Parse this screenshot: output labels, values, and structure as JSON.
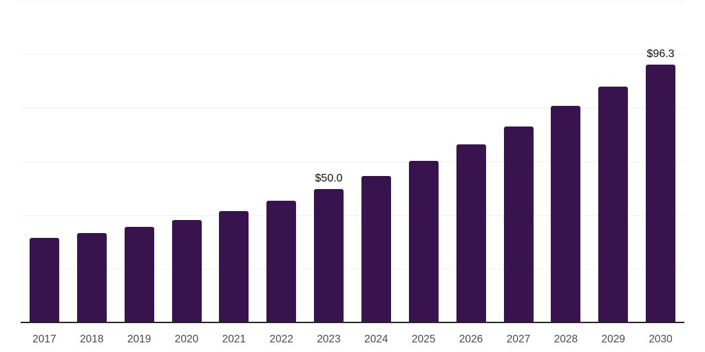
{
  "chart_data": {
    "type": "bar",
    "title": "",
    "categories": [
      "2017",
      "2018",
      "2019",
      "2020",
      "2021",
      "2022",
      "2023",
      "2024",
      "2025",
      "2026",
      "2027",
      "2028",
      "2029",
      "2030"
    ],
    "values": [
      31.8,
      33.7,
      35.8,
      38.4,
      41.8,
      45.6,
      50.0,
      55.0,
      60.6,
      66.7,
      73.4,
      81.0,
      88.3,
      96.3
    ],
    "data_labels": [
      {
        "category": "2023",
        "text": "$50.0"
      },
      {
        "category": "2030",
        "text": "$96.3"
      }
    ],
    "xlabel": "",
    "ylabel": "",
    "ylim": [
      0,
      120
    ],
    "grid": true,
    "grid_step": 20,
    "legend": false,
    "bar_color": "#38134e",
    "axis_line_color": "#262626",
    "gridline_color": "#f2f2f2",
    "tick_label_color": "#484848",
    "data_label_color": "#0d0d0d"
  }
}
